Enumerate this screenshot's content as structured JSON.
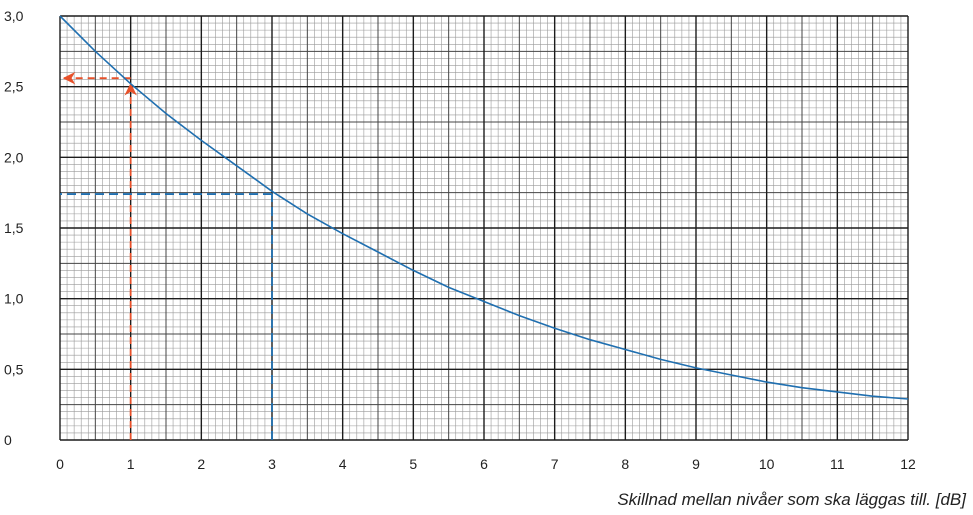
{
  "chart_data": {
    "type": "line",
    "title": "",
    "xlabel": "Skillnad mellan nivåer som ska läggas till. [dB]",
    "ylabel": "",
    "xlim": [
      0,
      12
    ],
    "ylim": [
      0,
      3
    ],
    "x_ticks": [
      0,
      1,
      2,
      3,
      4,
      5,
      6,
      7,
      8,
      9,
      10,
      11,
      12
    ],
    "x_tick_labels": [
      "0",
      "1",
      "2",
      "3",
      "4",
      "5",
      "6",
      "7",
      "8",
      "9",
      "10",
      "11",
      "12"
    ],
    "y_ticks": [
      0,
      0.5,
      1.0,
      1.5,
      2.0,
      2.5,
      3.0
    ],
    "y_tick_labels": [
      "0",
      "0,5",
      "1,0",
      "1,5",
      "2,0",
      "2,5",
      "3,0"
    ],
    "grid": true,
    "series": [
      {
        "color": "#1f6fb0",
        "x": [
          0,
          0.5,
          1,
          1.5,
          2,
          2.5,
          3,
          3.5,
          4,
          4.5,
          5,
          5.5,
          6,
          6.5,
          7,
          7.5,
          8,
          8.5,
          9,
          9.5,
          10,
          10.5,
          11,
          11.5,
          12
        ],
        "y": [
          3.0,
          2.75,
          2.52,
          2.31,
          2.12,
          1.94,
          1.76,
          1.6,
          1.46,
          1.33,
          1.2,
          1.08,
          0.98,
          0.88,
          0.79,
          0.71,
          0.64,
          0.57,
          0.51,
          0.46,
          0.41,
          0.37,
          0.34,
          0.31,
          0.29
        ]
      }
    ],
    "annotations": [
      {
        "kind": "dashed-guide",
        "color": "#e8512a",
        "x": 1,
        "y": 2.56,
        "arrows": [
          "up-to-curve",
          "left-to-axis"
        ]
      },
      {
        "kind": "dashed-guide",
        "color": "#1f6fb0",
        "x": 3,
        "y": 1.74,
        "arrows": []
      }
    ]
  }
}
